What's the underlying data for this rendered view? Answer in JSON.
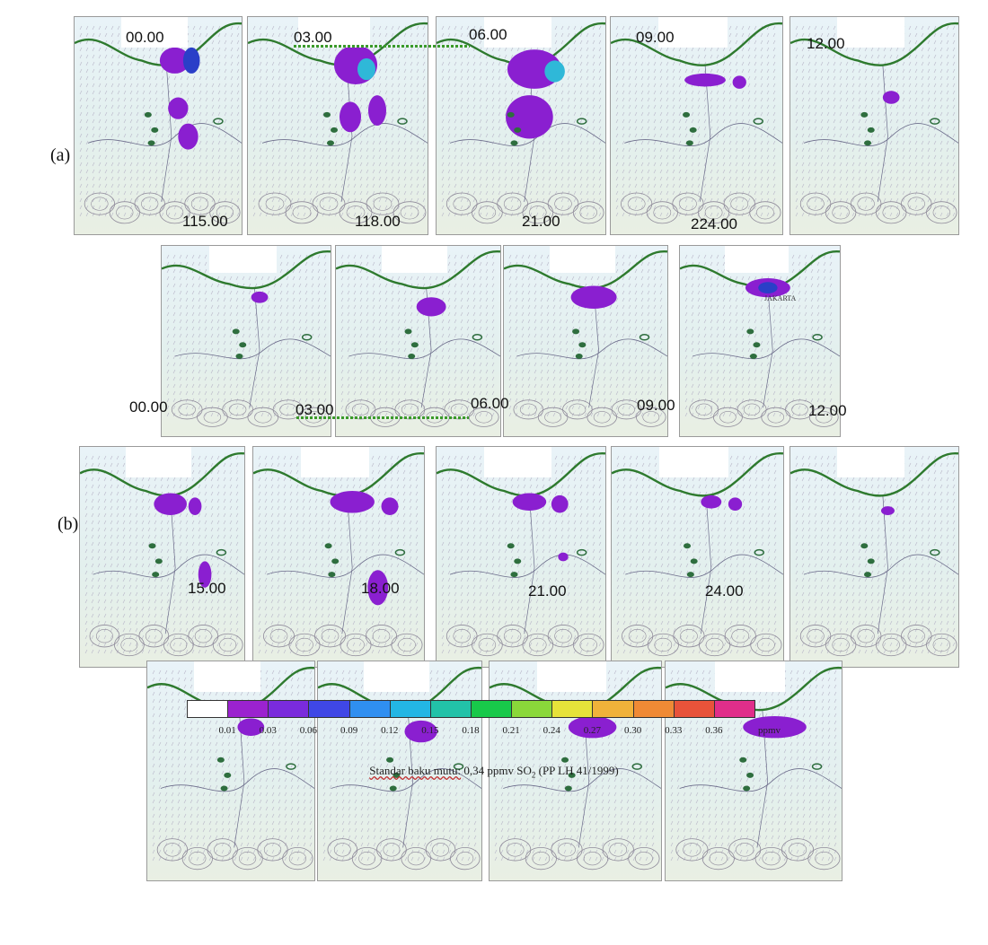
{
  "rows": {
    "a_label": "(a)",
    "b_label": "(b)"
  },
  "time_labels": {
    "a_top": [
      "00.00",
      "03.00",
      "06.00",
      "09.00",
      "12.00"
    ],
    "a_mid": [
      "115.00",
      "118.00",
      "21.00",
      "224.00"
    ],
    "a_bot": [
      "00.00",
      "03.00",
      "06.00",
      "09.00",
      "12.00"
    ],
    "b_mid": [
      "15.00",
      "18.00",
      "21.00",
      "24.00"
    ]
  },
  "map_annotation": "JAKARTA",
  "colorbar": {
    "ticks": [
      "0.01",
      "0.03",
      "0.06",
      "0.09",
      "0.12",
      "0.15",
      "0.18",
      "0.21",
      "0.24",
      "0.27",
      "0.30",
      "0.33",
      "0.36"
    ],
    "colors": [
      "#ffffff",
      "#9b22cf",
      "#7a2bdc",
      "#3f47e6",
      "#2f8ff0",
      "#23b6e4",
      "#22c2a8",
      "#18c94a",
      "#8ad83a",
      "#e6e23a",
      "#f0b23a",
      "#ef8a35",
      "#e8533a",
      "#e02e8a"
    ],
    "unit": "ppmv"
  },
  "caption": {
    "prefix": "Standar baku mutu:",
    "value": " 0,34 ppmv SO",
    "subscript": "2",
    "suffix": " (PP LH 41/1999)"
  },
  "colors": {
    "coastline": "#2e7a2e",
    "plume": "#8a1fd0",
    "plume_dense": "#2a3fc8",
    "plume_cyan": "#2fb8d8",
    "marker": "#2e6e3e"
  }
}
